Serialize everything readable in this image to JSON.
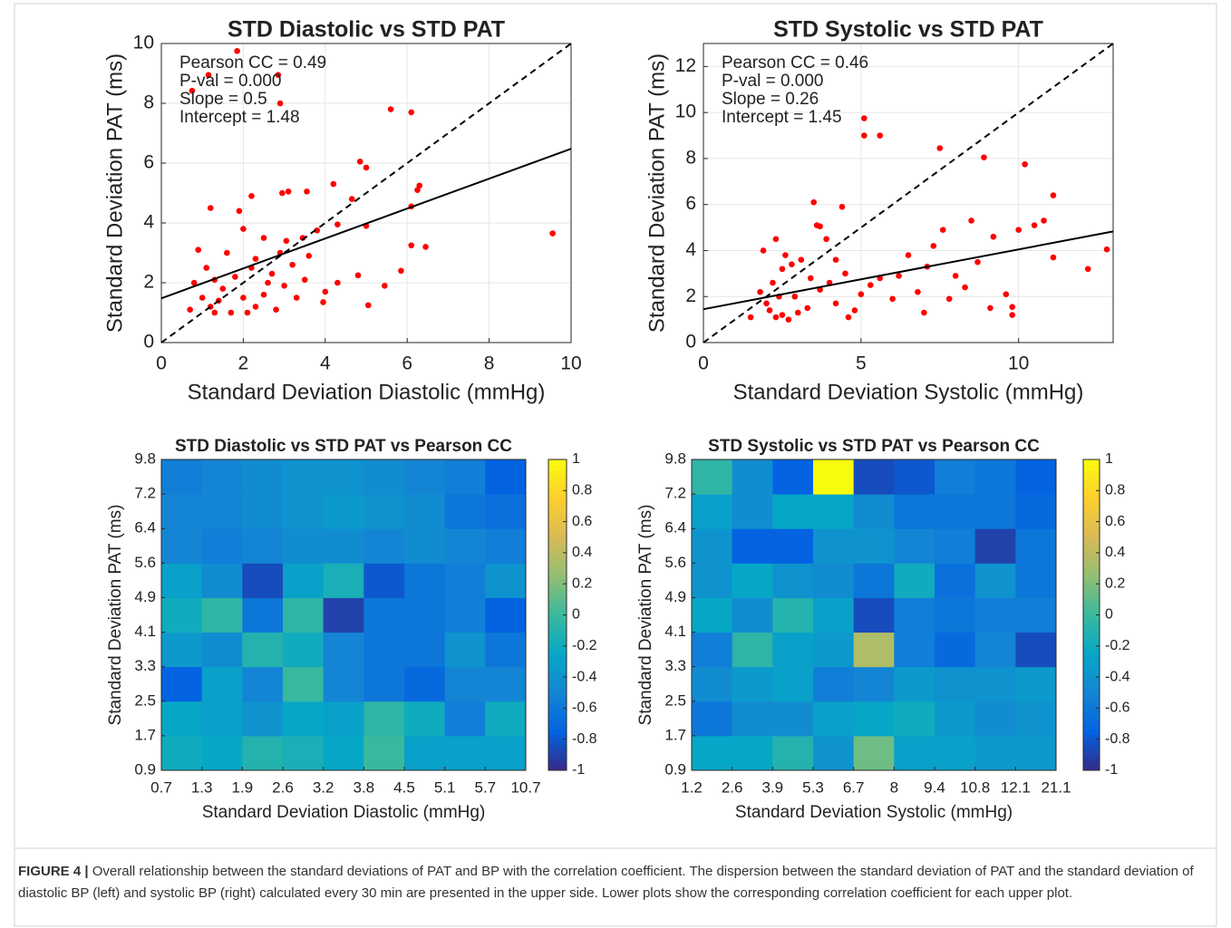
{
  "chart_data": [
    {
      "type": "scatter",
      "title": "STD Diastolic vs STD PAT",
      "x_label": "Standard Deviation Diastolic (mmHg)",
      "y_label": "Standard Deviation PAT (ms)",
      "xlim": [
        0,
        10
      ],
      "ylim": [
        0,
        10
      ],
      "xticks": [
        0,
        2,
        4,
        6,
        8,
        10
      ],
      "yticks": [
        0,
        2,
        4,
        6,
        8,
        10
      ],
      "grid": true,
      "annotations": [
        "Pearson CC = 0.49",
        "P-val = 0.000",
        "Slope = 0.5",
        "Intercept = 1.48"
      ],
      "series": [
        {
          "style": "points",
          "color": "#ff0000",
          "x": [
            1.85,
            1.15,
            0.75,
            2.85,
            2.9,
            5.6,
            6.1,
            4.85,
            5.0,
            6.3,
            6.25,
            4.2,
            3.55,
            3.1,
            2.95,
            2.2,
            4.65,
            6.1,
            9.55,
            6.45,
            6.1,
            5.85,
            4.8,
            4.3,
            5.45,
            5.05,
            3.95,
            5.0,
            4.3,
            3.05,
            3.45,
            3.8,
            1.0,
            1.2,
            1.3,
            1.5,
            1.8,
            2.0,
            2.3,
            2.5,
            2.8,
            3.0,
            1.1,
            1.6,
            0.9,
            1.2,
            1.9,
            2.0,
            2.5,
            2.3,
            2.7,
            3.2,
            3.5,
            0.7,
            0.8,
            1.4,
            1.7,
            2.1,
            2.6,
            3.3,
            2.9,
            2.2,
            1.3,
            3.6,
            4.0
          ],
          "values": [
            9.75,
            8.95,
            8.42,
            8.95,
            8.0,
            7.8,
            7.7,
            6.05,
            5.85,
            5.25,
            5.1,
            5.3,
            5.05,
            5.05,
            5.0,
            4.9,
            4.8,
            4.55,
            3.65,
            3.2,
            3.25,
            2.4,
            2.25,
            2.0,
            1.9,
            1.25,
            1.35,
            3.9,
            3.95,
            3.4,
            3.5,
            3.75,
            1.5,
            1.2,
            1.0,
            1.8,
            2.2,
            1.5,
            1.2,
            1.6,
            1.1,
            1.9,
            2.5,
            3.0,
            3.1,
            4.5,
            4.4,
            3.8,
            3.5,
            2.8,
            2.3,
            2.6,
            2.1,
            1.1,
            2.0,
            1.4,
            1.0,
            1.0,
            2.0,
            1.5,
            3.0,
            2.5,
            2.1,
            2.9,
            1.7
          ]
        },
        {
          "style": "dashed",
          "color": "#000000",
          "x": [
            0,
            10
          ],
          "values": [
            0,
            10
          ]
        },
        {
          "style": "solid",
          "color": "#000000",
          "x": [
            0,
            10
          ],
          "values": [
            1.48,
            6.48
          ]
        }
      ]
    },
    {
      "type": "scatter",
      "title": "STD Systolic vs STD PAT",
      "x_label": "Standard Deviation Systolic (mmHg)",
      "y_label": "Standard Deviation PAT (ms)",
      "xlim": [
        0,
        13
      ],
      "ylim": [
        0,
        13
      ],
      "xticks": [
        0,
        5,
        10
      ],
      "yticks": [
        0,
        2,
        4,
        6,
        8,
        10,
        12
      ],
      "grid": true,
      "annotations": [
        "Pearson CC = 0.46",
        "P-val = 0.000",
        "Slope = 0.26",
        "Intercept = 1.45"
      ],
      "series": [
        {
          "style": "points",
          "color": "#ff0000",
          "x": [
            5.1,
            5.1,
            5.6,
            7.5,
            8.9,
            10.2,
            4.4,
            3.5,
            3.7,
            3.6,
            11.1,
            12.2,
            12.8,
            11.1,
            10.8,
            10.5,
            9.8,
            9.8,
            9.6,
            9.1,
            8.5,
            8.3,
            7.6,
            7.3,
            7.1,
            6.8,
            6.2,
            5.6,
            5.0,
            4.8,
            4.2,
            4.5,
            4.0,
            3.7,
            3.3,
            3.0,
            2.7,
            2.5,
            2.3,
            2.1,
            2.0,
            2.4,
            2.2,
            2.5,
            2.6,
            2.3,
            1.9,
            2.8,
            3.1,
            1.5,
            1.8,
            6.5,
            7.0,
            8.0,
            9.2,
            10.0,
            3.9,
            4.2,
            5.3,
            6.0,
            7.8,
            8.7,
            2.9,
            3.4,
            4.6
          ],
          "values": [
            9.75,
            9.0,
            9.0,
            8.45,
            8.05,
            7.75,
            5.9,
            6.1,
            5.05,
            5.1,
            6.4,
            3.2,
            4.05,
            3.7,
            5.3,
            5.1,
            1.55,
            1.2,
            2.1,
            1.5,
            5.3,
            2.4,
            4.9,
            4.2,
            3.3,
            2.2,
            2.9,
            2.8,
            2.1,
            1.4,
            1.7,
            3.0,
            2.6,
            2.3,
            1.5,
            1.3,
            1.0,
            1.2,
            1.1,
            1.4,
            1.7,
            2.0,
            2.6,
            3.2,
            3.8,
            4.5,
            4.0,
            3.4,
            3.6,
            1.1,
            2.2,
            3.8,
            1.3,
            2.9,
            4.6,
            4.9,
            4.5,
            3.6,
            2.5,
            1.9,
            1.9,
            3.5,
            2.0,
            2.8,
            1.1
          ]
        },
        {
          "style": "dashed",
          "color": "#000000",
          "x": [
            0,
            13
          ],
          "values": [
            0,
            13
          ]
        },
        {
          "style": "solid",
          "color": "#000000",
          "x": [
            0,
            13
          ],
          "values": [
            1.45,
            4.83
          ]
        }
      ]
    },
    {
      "type": "heatmap",
      "title": "STD Diastolic vs STD PAT vs Pearson CC",
      "x_label": "Standard Deviation Diastolic (mmHg)",
      "y_label": "Standard Deviation PAT (ms)",
      "x_edges": [
        0.7,
        1.3,
        1.9,
        2.6,
        3.2,
        3.8,
        4.5,
        5.1,
        5.7,
        10.7
      ],
      "y_edges": [
        0.9,
        1.7,
        2.5,
        3.3,
        4.1,
        4.9,
        5.6,
        6.4,
        7.2,
        9.8
      ],
      "clim": [
        -1,
        1
      ],
      "cticks": [
        -1,
        -0.8,
        -0.6,
        -0.4,
        -0.2,
        0,
        0.2,
        0.4,
        0.6,
        0.8,
        1
      ],
      "colormap": "parula",
      "values": [
        [
          -0.2,
          -0.25,
          -0.1,
          -0.15,
          -0.25,
          0.0,
          -0.3,
          -0.3,
          -0.3
        ],
        [
          -0.25,
          -0.3,
          -0.4,
          -0.25,
          -0.3,
          -0.05,
          -0.2,
          -0.55,
          -0.2
        ],
        [
          -0.75,
          -0.3,
          -0.5,
          0.0,
          -0.5,
          -0.6,
          -0.7,
          -0.5,
          -0.5
        ],
        [
          -0.35,
          -0.45,
          -0.1,
          -0.2,
          -0.5,
          -0.6,
          -0.6,
          -0.4,
          -0.6
        ],
        [
          -0.2,
          -0.05,
          -0.6,
          -0.05,
          -0.9,
          -0.6,
          -0.6,
          -0.55,
          -0.75
        ],
        [
          -0.3,
          -0.45,
          -0.85,
          -0.3,
          -0.15,
          -0.8,
          -0.6,
          -0.55,
          -0.4
        ],
        [
          -0.5,
          -0.55,
          -0.5,
          -0.45,
          -0.45,
          -0.5,
          -0.45,
          -0.5,
          -0.55
        ],
        [
          -0.5,
          -0.5,
          -0.45,
          -0.4,
          -0.35,
          -0.4,
          -0.45,
          -0.6,
          -0.65
        ],
        [
          -0.55,
          -0.5,
          -0.45,
          -0.4,
          -0.4,
          -0.45,
          -0.5,
          -0.55,
          -0.75
        ]
      ]
    },
    {
      "type": "heatmap",
      "title": "STD Systolic vs STD PAT vs Pearson CC",
      "x_label": "Standard Deviation Systolic (mmHg)",
      "y_label": "Standard Deviation PAT (ms)",
      "x_edges": [
        1.2,
        2.6,
        3.9,
        5.3,
        6.7,
        8,
        9.4,
        10.8,
        12.1,
        21.1
      ],
      "y_edges": [
        0.9,
        1.7,
        2.5,
        3.3,
        4.1,
        4.9,
        5.6,
        6.4,
        7.2,
        9.8
      ],
      "clim": [
        -1,
        1
      ],
      "cticks": [
        -1,
        -0.8,
        -0.6,
        -0.4,
        -0.2,
        0,
        0.2,
        0.4,
        0.6,
        0.8,
        1
      ],
      "colormap": "parula",
      "values": [
        [
          -0.25,
          -0.25,
          -0.1,
          -0.4,
          0.15,
          -0.3,
          -0.3,
          -0.35,
          -0.35
        ],
        [
          -0.6,
          -0.45,
          -0.45,
          -0.3,
          -0.25,
          -0.2,
          -0.35,
          -0.45,
          -0.4
        ],
        [
          -0.45,
          -0.35,
          -0.3,
          -0.55,
          -0.5,
          -0.35,
          -0.4,
          -0.4,
          -0.35
        ],
        [
          -0.55,
          -0.05,
          -0.3,
          -0.35,
          0.35,
          -0.55,
          -0.7,
          -0.5,
          -0.85
        ],
        [
          -0.25,
          -0.45,
          -0.1,
          -0.3,
          -0.85,
          -0.55,
          -0.6,
          -0.55,
          -0.55
        ],
        [
          -0.4,
          -0.25,
          -0.4,
          -0.45,
          -0.6,
          -0.2,
          -0.65,
          -0.4,
          -0.6
        ],
        [
          -0.4,
          -0.75,
          -0.75,
          -0.4,
          -0.4,
          -0.5,
          -0.55,
          -0.9,
          -0.6
        ],
        [
          -0.3,
          -0.45,
          -0.25,
          -0.25,
          -0.45,
          -0.6,
          -0.6,
          -0.6,
          -0.7
        ],
        [
          -0.05,
          -0.45,
          -0.75,
          1.0,
          -0.85,
          -0.8,
          -0.55,
          -0.6,
          -0.75
        ]
      ]
    }
  ],
  "caption": {
    "label": "FIGURE 4 |",
    "text": "Overall relationship between the standard deviations of PAT and BP with the correlation coefficient. The dispersion between the standard deviation of PAT and the standard deviation of diastolic BP (left) and systolic BP (right) calculated every 30 min are presented in the upper side. Lower plots show the corresponding correlation coefficient for each upper plot."
  }
}
